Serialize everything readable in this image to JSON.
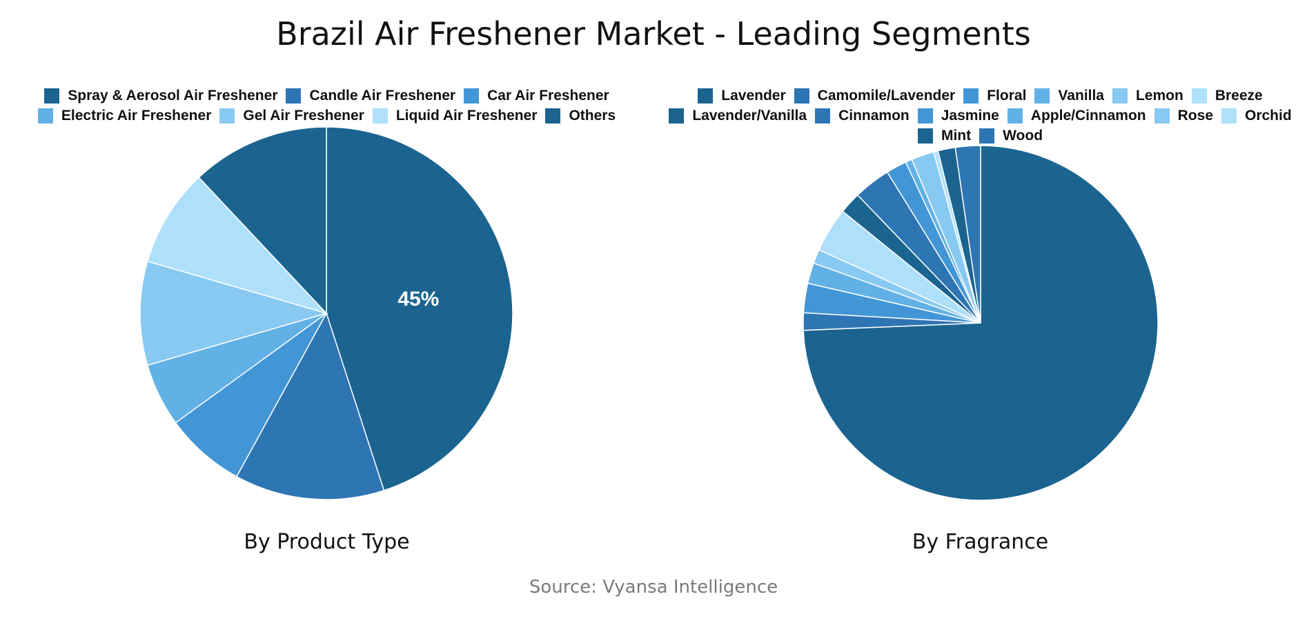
{
  "title": "Brazil Air Freshener Market - Leading Segments",
  "source": "Source: Vyansa Intelligence",
  "chart_data": [
    {
      "type": "pie",
      "title": "By Product Type",
      "legend_position": "top",
      "categories": [
        "Spray & Aerosol Air Freshener",
        "Candle Air Freshener",
        "Car Air Freshener",
        "Electric Air Freshener",
        "Gel Air Freshener",
        "Liquid Air Freshener",
        "Others"
      ],
      "values": [
        45,
        13,
        7,
        5.5,
        9,
        8.5,
        12
      ],
      "colors": [
        "#1b6490",
        "#2e75b4",
        "#4296d6",
        "#62b1e6",
        "#88c9f1",
        "#aee0fb",
        "#1b6490"
      ],
      "data_labels": [
        "45%",
        "",
        "",
        "",
        "",
        "",
        ""
      ]
    },
    {
      "type": "pie",
      "title": "By Fragrance",
      "legend_position": "top",
      "categories": [
        "Lavender",
        "Camomile/Lavender",
        "Floral",
        "Vanilla",
        "Lemon",
        "Breeze",
        "Lavender/Vanilla",
        "Cinnamon",
        "Jasmine",
        "Apple/Cinnamon",
        "Rose",
        "Orchid",
        "Mint",
        "Wood"
      ],
      "values": [
        75,
        1.6,
        2.7,
        1.9,
        1.3,
        4.1,
        2,
        3.4,
        1.9,
        0.6,
        2.1,
        0.4,
        1.6,
        2.3
      ],
      "colors": [
        "#1b6490",
        "#2e75b4",
        "#4296d6",
        "#62b1e6",
        "#88c9f1",
        "#aee0fb",
        "#1b6490",
        "#2e75b4",
        "#4296d6",
        "#62b1e6",
        "#88c9f1",
        "#aee0fb",
        "#1b6490",
        "#2e75b4"
      ],
      "data_labels": [
        "",
        "",
        "",
        "",
        "",
        "",
        "",
        "",
        "",
        "",
        "",
        "",
        "",
        ""
      ]
    }
  ]
}
